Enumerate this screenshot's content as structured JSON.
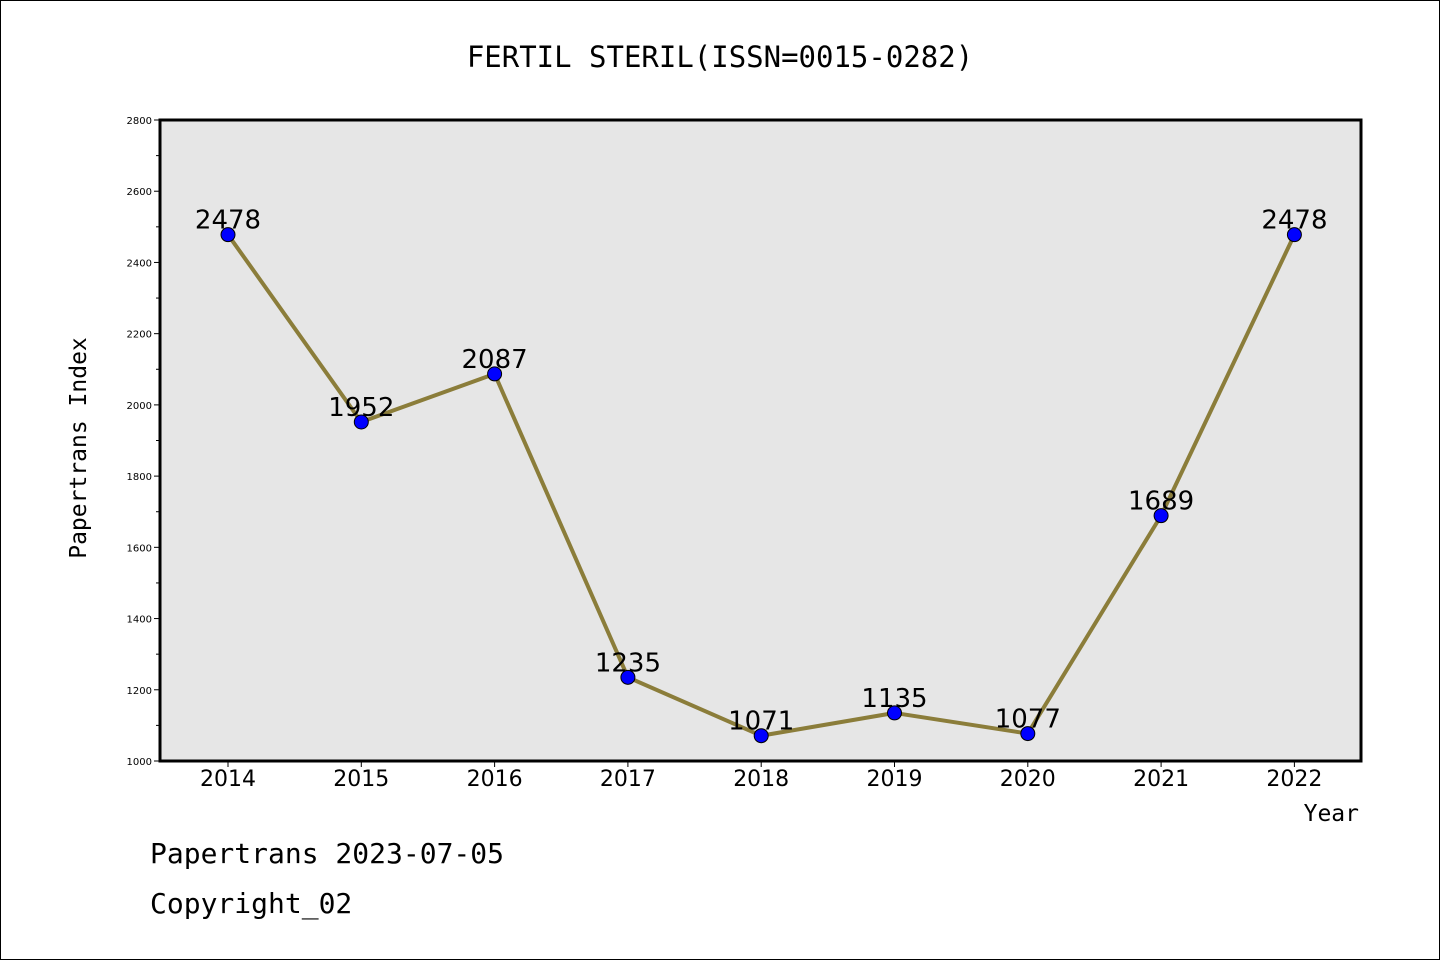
{
  "chart_data": {
    "type": "line",
    "title": "FERTIL STERIL(ISSN=0015-0282)",
    "xlabel": "Year",
    "ylabel": "Papertrans Index",
    "categories": [
      "2014",
      "2015",
      "2016",
      "2017",
      "2018",
      "2019",
      "2020",
      "2021",
      "2022"
    ],
    "values": [
      2478,
      1952,
      2087,
      1235,
      1071,
      1135,
      1077,
      1689,
      2478
    ],
    "data_labels": [
      "2478",
      "1952",
      "2087",
      "1235",
      "1071",
      "1135",
      "1077",
      "1689",
      "2478"
    ],
    "ylim": [
      1000,
      2800
    ],
    "yticks": [
      1000,
      1200,
      1400,
      1600,
      1800,
      2000,
      2200,
      2400,
      2600,
      2800
    ],
    "ytick_labels": [
      "1000",
      "1200",
      "1400",
      "1600",
      "1800",
      "2000",
      "2200",
      "2400",
      "2600",
      "2800"
    ],
    "grid": false,
    "legend": "none",
    "line_color": "#8b7d3a",
    "marker_color": "#0000ff",
    "plot_background": "#e6e6e6"
  },
  "footer": {
    "line1": "Papertrans 2023-07-05",
    "line2": "Copyright_02"
  }
}
